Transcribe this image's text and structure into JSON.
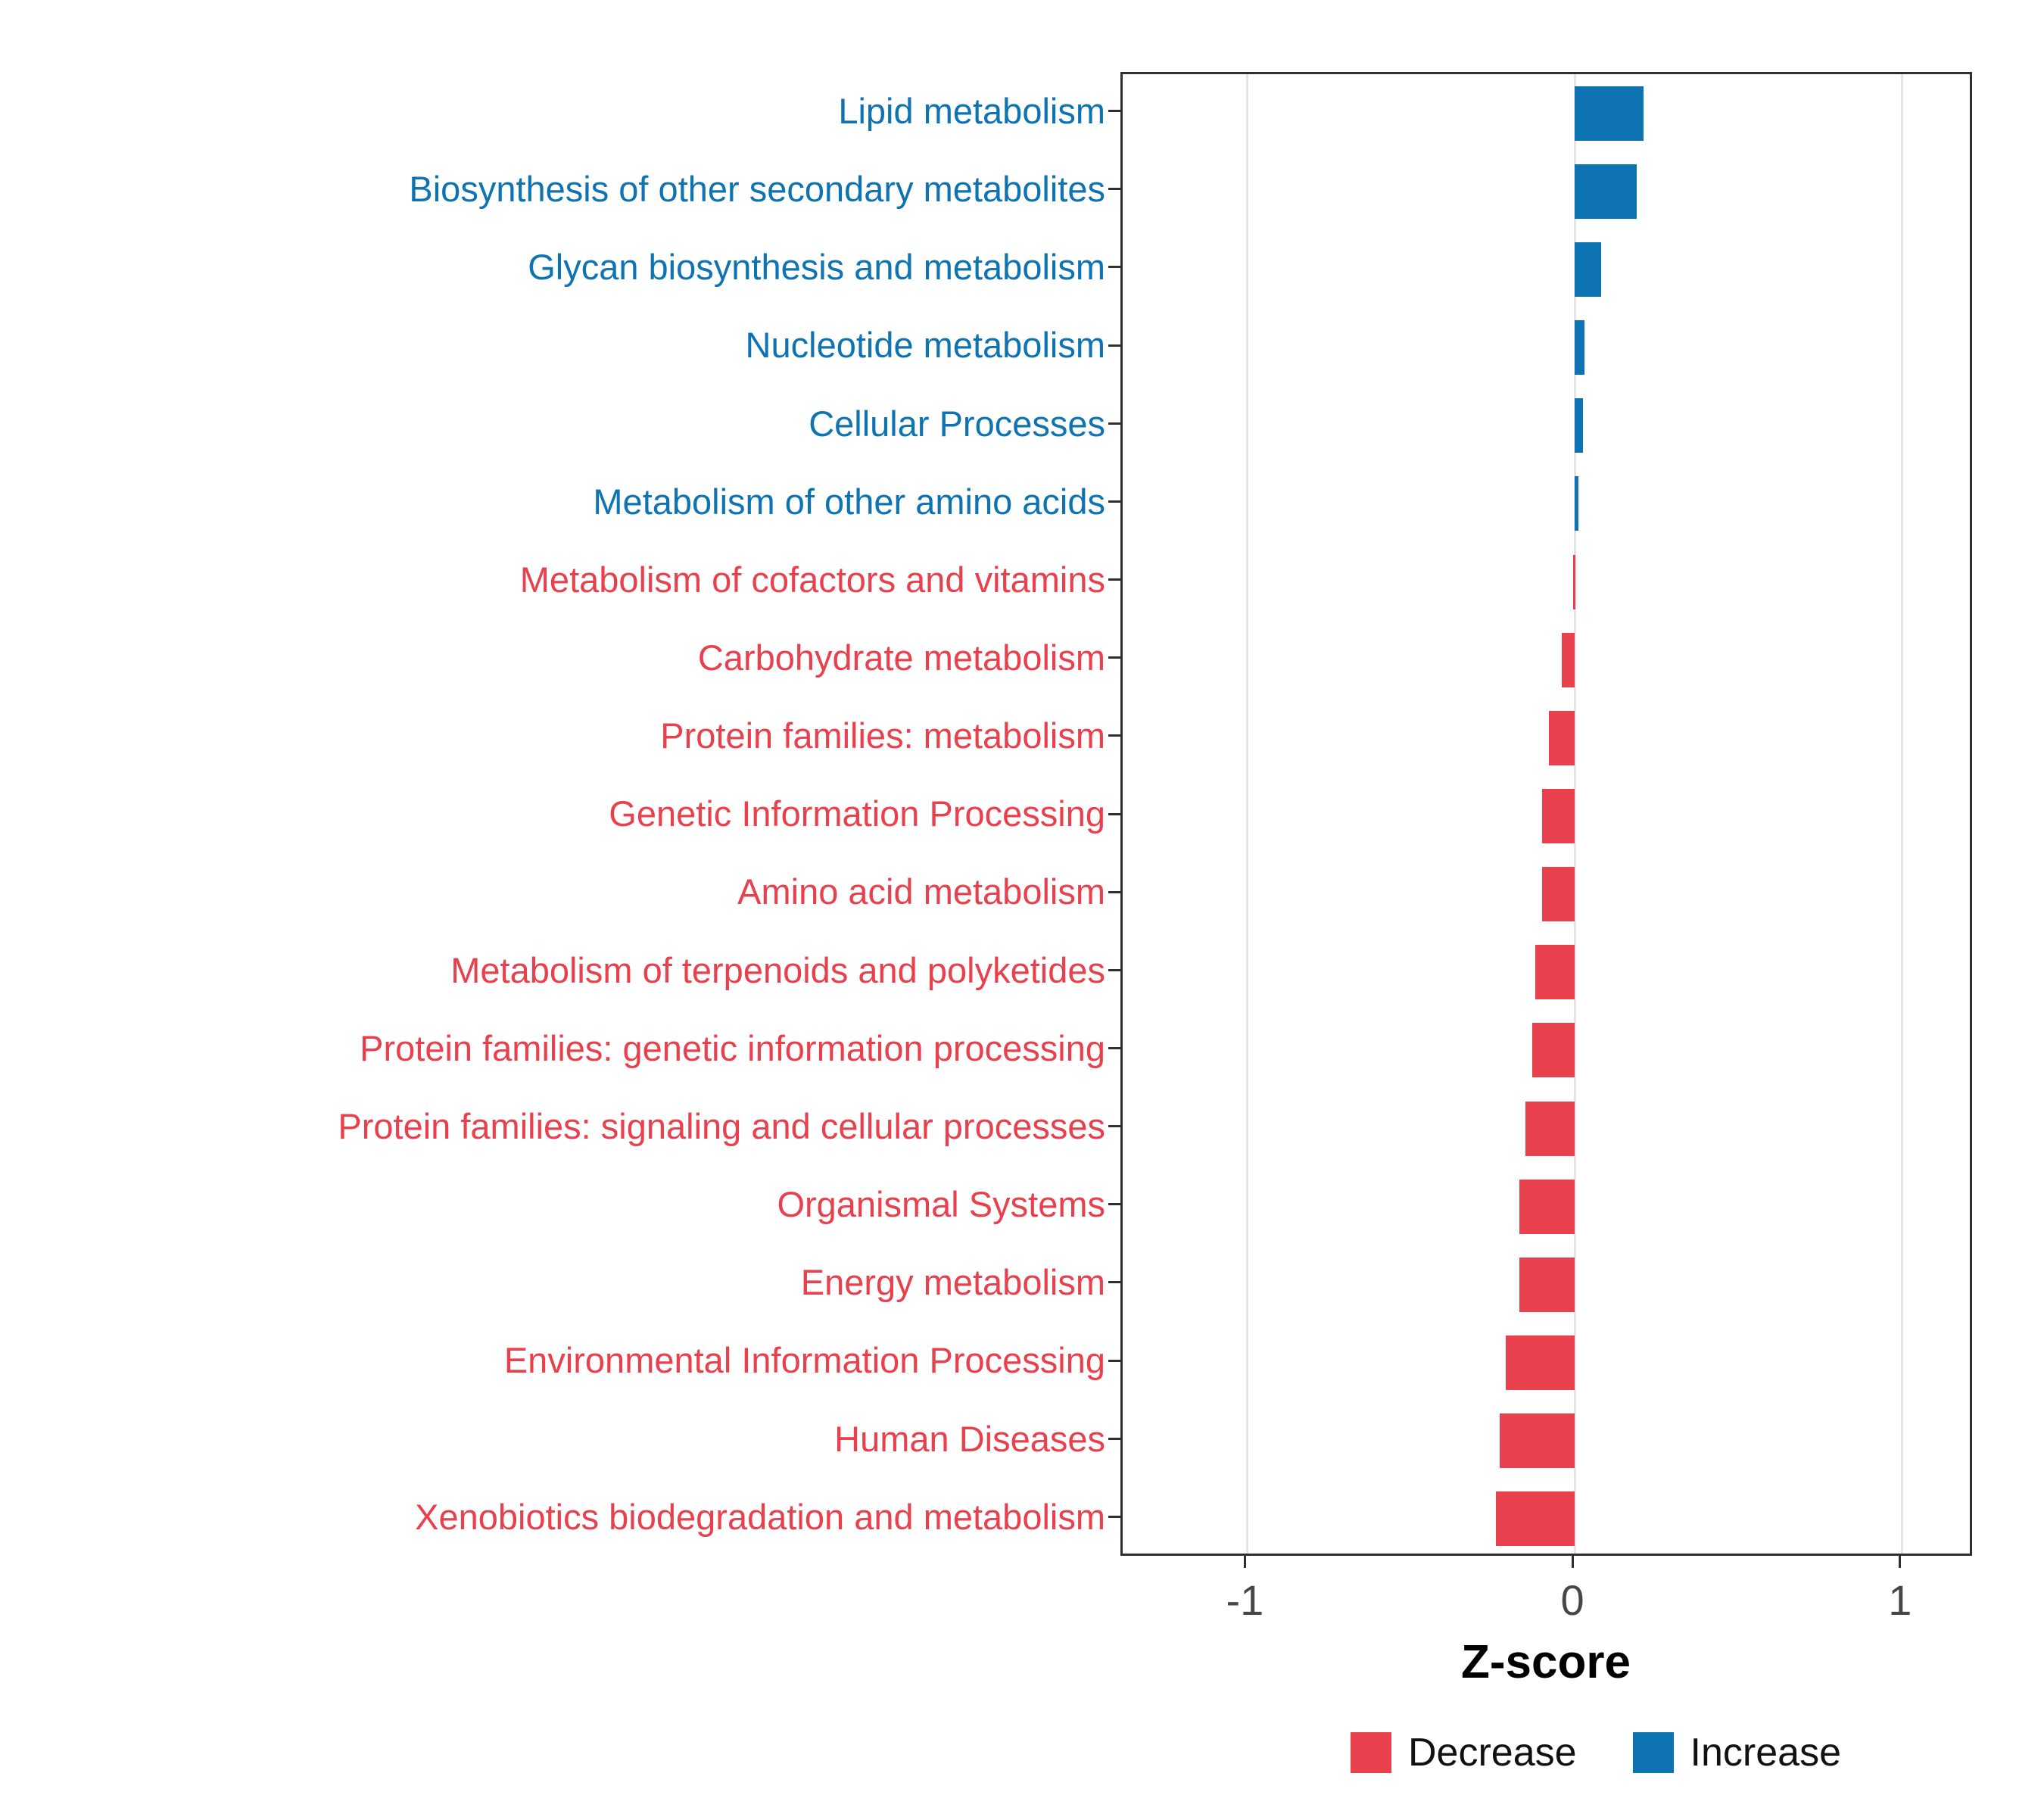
{
  "chart_data": {
    "type": "bar",
    "orientation": "horizontal",
    "title": "",
    "xlabel": "Z-score",
    "ylabel": "",
    "xlim": [
      -1.38,
      1.22
    ],
    "x_ticks": [
      -1,
      0,
      1
    ],
    "grid": "major-vertical",
    "legend_position": "bottom-right",
    "colors": {
      "decrease": "#E8414D",
      "increase": "#0D73B2",
      "panel_border": "#2f2f2f",
      "gridline": "#e4e4e4"
    },
    "legend": [
      {
        "label": "Decrease",
        "color": "#E8414D"
      },
      {
        "label": "Increase",
        "color": "#0D73B2"
      }
    ],
    "items": [
      {
        "label": "Lipid metabolism",
        "value": 0.21,
        "direction": "increase"
      },
      {
        "label": "Biosynthesis of other secondary metabolites",
        "value": 0.19,
        "direction": "increase"
      },
      {
        "label": "Glycan biosynthesis and metabolism",
        "value": 0.08,
        "direction": "increase"
      },
      {
        "label": "Nucleotide metabolism",
        "value": 0.03,
        "direction": "increase"
      },
      {
        "label": "Cellular Processes",
        "value": 0.025,
        "direction": "increase"
      },
      {
        "label": "Metabolism of other amino acids",
        "value": 0.012,
        "direction": "increase"
      },
      {
        "label": "Metabolism of cofactors and vitamins",
        "value": -0.005,
        "direction": "decrease"
      },
      {
        "label": "Carbohydrate metabolism",
        "value": -0.04,
        "direction": "decrease"
      },
      {
        "label": "Protein families: metabolism",
        "value": -0.08,
        "direction": "decrease"
      },
      {
        "label": "Genetic Information Processing",
        "value": -0.1,
        "direction": "decrease"
      },
      {
        "label": "Amino acid metabolism",
        "value": -0.1,
        "direction": "decrease"
      },
      {
        "label": "Metabolism of terpenoids and polyketides",
        "value": -0.12,
        "direction": "decrease"
      },
      {
        "label": "Protein families: genetic information processing",
        "value": -0.13,
        "direction": "decrease"
      },
      {
        "label": "Protein families: signaling and cellular processes",
        "value": -0.15,
        "direction": "decrease"
      },
      {
        "label": "Organismal Systems",
        "value": -0.17,
        "direction": "decrease"
      },
      {
        "label": "Energy metabolism",
        "value": -0.17,
        "direction": "decrease"
      },
      {
        "label": "Environmental Information Processing",
        "value": -0.21,
        "direction": "decrease"
      },
      {
        "label": "Human Diseases",
        "value": -0.23,
        "direction": "decrease"
      },
      {
        "label": "Xenobiotics biodegradation and metabolism",
        "value": -0.24,
        "direction": "decrease"
      }
    ]
  }
}
